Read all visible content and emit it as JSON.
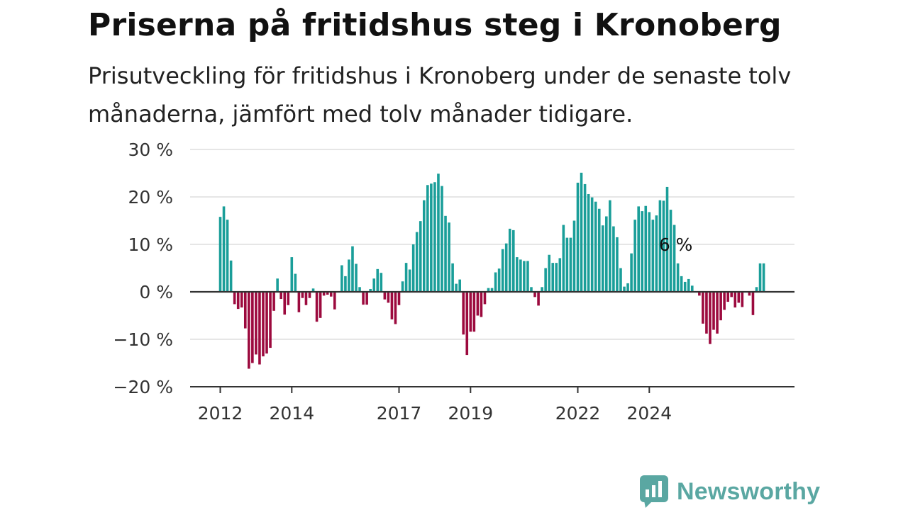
{
  "header": {
    "title": "Priserna på fritidshus steg i Kronoberg",
    "subtitle": "Prisutveckling för fritidshus i Kronoberg under de senaste tolv månaderna, jämfört med tolv månader tidigare."
  },
  "brand": {
    "name": "Newsworthy",
    "icon": "newsworthy-logo-icon",
    "color": "#5aa7a2"
  },
  "chart_data": {
    "type": "bar",
    "title": "Priserna på fritidshus steg i Kronoberg",
    "subtitle": "Prisutveckling för fritidshus i Kronoberg under de senaste tolv månaderna, jämfört med tolv månader tidigare.",
    "xlabel": "",
    "ylabel": "",
    "ylim": [
      -20,
      30
    ],
    "y_ticks": [
      {
        "value": 30,
        "label": "30 %"
      },
      {
        "value": 20,
        "label": "20 %"
      },
      {
        "value": 10,
        "label": "10 %"
      },
      {
        "value": 0,
        "label": "0 %"
      },
      {
        "value": -10,
        "label": "−10 %"
      },
      {
        "value": -20,
        "label": "−20 %"
      }
    ],
    "x_ticks": [
      {
        "index": 0,
        "label": "2012"
      },
      {
        "index": 20,
        "label": "2014"
      },
      {
        "index": 50,
        "label": "2017"
      },
      {
        "index": 70,
        "label": "2019"
      },
      {
        "index": 100,
        "label": "2022"
      },
      {
        "index": 120,
        "label": "2024"
      }
    ],
    "grid": true,
    "legend": "none",
    "colors": {
      "positive": "#1a9e99",
      "negative": "#9c0a3e",
      "axis": "#333333",
      "grid": "#dddddd"
    },
    "annotation": {
      "index": 128,
      "value": 6,
      "label": "6 %"
    },
    "values": [
      15.8,
      18.0,
      15.2,
      6.6,
      -2.6,
      -3.6,
      -3.3,
      -7.7,
      -16.2,
      -15.0,
      -13.2,
      -15.3,
      -13.6,
      -13.0,
      -11.8,
      -4.0,
      2.8,
      -1.5,
      -4.8,
      -2.8,
      7.3,
      3.8,
      -4.3,
      -1.3,
      -2.8,
      -1.3,
      0.7,
      -6.3,
      -5.5,
      -0.8,
      -0.6,
      -1.0,
      -3.7,
      0.0,
      5.6,
      3.3,
      6.8,
      9.6,
      5.9,
      1.0,
      -2.7,
      -2.7,
      0.6,
      2.8,
      4.8,
      4.0,
      -1.6,
      -2.3,
      -5.8,
      -6.8,
      -2.8,
      2.2,
      6.1,
      4.7,
      10.0,
      12.6,
      14.9,
      19.3,
      22.5,
      22.8,
      23.1,
      24.9,
      22.3,
      16.0,
      14.6,
      6.0,
      1.7,
      2.6,
      -9.0,
      -13.3,
      -8.4,
      -8.4,
      -5.0,
      -5.3,
      -2.6,
      0.8,
      0.8,
      4.1,
      4.9,
      9.0,
      10.2,
      13.3,
      13.0,
      7.3,
      6.8,
      6.5,
      6.5,
      1.0,
      -1.1,
      -2.9,
      1.0,
      5.0,
      7.8,
      6.1,
      6.1,
      7.1,
      14.1,
      11.4,
      11.4,
      15.0,
      23.0,
      25.1,
      22.7,
      20.6,
      19.9,
      19.0,
      17.5,
      14.0,
      15.9,
      19.3,
      13.8,
      11.5,
      5.0,
      1.1,
      1.8,
      8.1,
      15.2,
      18.0,
      17.0,
      18.1,
      16.8,
      15.2,
      16.1,
      19.3,
      19.2,
      22.1,
      17.3,
      14.1,
      6.0,
      3.3,
      2.1,
      2.7,
      1.3,
      0.0,
      -0.8,
      -6.7,
      -8.8,
      -11.0,
      -8.0,
      -8.8,
      -6.0,
      -3.8,
      -2.1,
      -1.1,
      -3.3,
      -2.3,
      -3.2,
      0.0,
      -0.8,
      -4.9,
      1.0,
      6.0,
      6.0
    ]
  }
}
